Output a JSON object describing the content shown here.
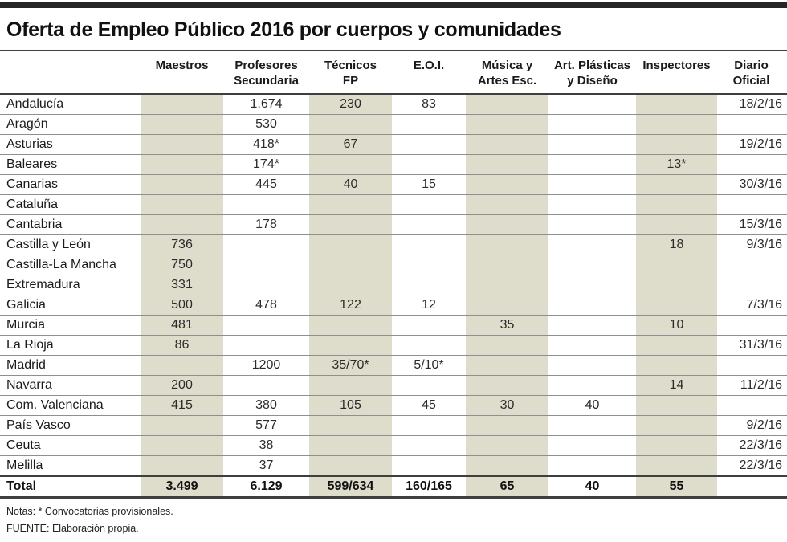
{
  "title": "Oferta de Empleo Público 2016 por cuerpos y comunidades",
  "chart_data": {
    "type": "table",
    "row_header": "",
    "columns": [
      "Maestros",
      "Profesores\nSecundaria",
      "Técnicos\nFP",
      "E.O.I.",
      "Música y\nArtes Esc.",
      "Art. Plásticas\ny Diseño",
      "Inspectores",
      "Diario\nOficial"
    ],
    "column_ids": [
      "maestros",
      "profesores-secundaria",
      "tecnicos-fp",
      "eoi",
      "musica-artes-esc",
      "art-plasticas-diseno",
      "inspectores",
      "diario-oficial"
    ],
    "shaded_value_columns": [
      0,
      2,
      4,
      6
    ],
    "rows": [
      {
        "label": "Andalucía",
        "values": [
          "",
          "1.674",
          "230",
          "83",
          "",
          "",
          "",
          "18/2/16"
        ]
      },
      {
        "label": "Aragón",
        "values": [
          "",
          "530",
          "",
          "",
          "",
          "",
          "",
          ""
        ]
      },
      {
        "label": "Asturias",
        "values": [
          "",
          "418*",
          "67",
          "",
          "",
          "",
          "",
          "19/2/16"
        ]
      },
      {
        "label": "Baleares",
        "values": [
          "",
          "174*",
          "",
          "",
          "",
          "",
          "13*",
          ""
        ]
      },
      {
        "label": "Canarias",
        "values": [
          "",
          "445",
          "40",
          "15",
          "",
          "",
          "",
          "30/3/16"
        ]
      },
      {
        "label": "Cataluña",
        "values": [
          "",
          "",
          "",
          "",
          "",
          "",
          "",
          ""
        ]
      },
      {
        "label": "Cantabria",
        "values": [
          "",
          "178",
          "",
          "",
          "",
          "",
          "",
          "15/3/16"
        ]
      },
      {
        "label": "Castilla y León",
        "values": [
          "736",
          "",
          "",
          "",
          "",
          "",
          "18",
          "9/3/16"
        ]
      },
      {
        "label": "Castilla-La Mancha",
        "values": [
          "750",
          "",
          "",
          "",
          "",
          "",
          "",
          ""
        ]
      },
      {
        "label": "Extremadura",
        "values": [
          "331",
          "",
          "",
          "",
          "",
          "",
          "",
          ""
        ]
      },
      {
        "label": "Galicia",
        "values": [
          "500",
          "478",
          "122",
          "12",
          "",
          "",
          "",
          "7/3/16"
        ]
      },
      {
        "label": "Murcia",
        "values": [
          "481",
          "",
          "",
          "",
          "35",
          "",
          "10",
          ""
        ]
      },
      {
        "label": "La Rioja",
        "values": [
          "86",
          "",
          "",
          "",
          "",
          "",
          "",
          "31/3/16"
        ]
      },
      {
        "label": "Madrid",
        "values": [
          "",
          "1200",
          "35/70*",
          "5/10*",
          "",
          "",
          "",
          ""
        ]
      },
      {
        "label": "Navarra",
        "values": [
          "200",
          "",
          "",
          "",
          "",
          "",
          "14",
          "11/2/16"
        ]
      },
      {
        "label": "Com. Valenciana",
        "values": [
          "415",
          "380",
          "105",
          "45",
          "30",
          "40",
          "",
          ""
        ]
      },
      {
        "label": "País Vasco",
        "values": [
          "",
          "577",
          "",
          "",
          "",
          "",
          "",
          "9/2/16"
        ]
      },
      {
        "label": "Ceuta",
        "values": [
          "",
          "38",
          "",
          "",
          "",
          "",
          "",
          "22/3/16"
        ]
      },
      {
        "label": "Melilla",
        "values": [
          "",
          "37",
          "",
          "",
          "",
          "",
          "",
          "22/3/16"
        ]
      }
    ],
    "total": {
      "label": "Total",
      "values": [
        "3.499",
        "6.129",
        "599/634",
        "160/165",
        "65",
        "40",
        "55",
        ""
      ]
    }
  },
  "notes": {
    "line1": "Notas: * Convocatorias provisionales.",
    "line2": "FUENTE: Elaboración propia."
  },
  "colors": {
    "column_shade": "#dedccb",
    "dark_rule": "#3f3f3f",
    "row_line": "#8f8f8f",
    "top_bar": "#262626"
  }
}
